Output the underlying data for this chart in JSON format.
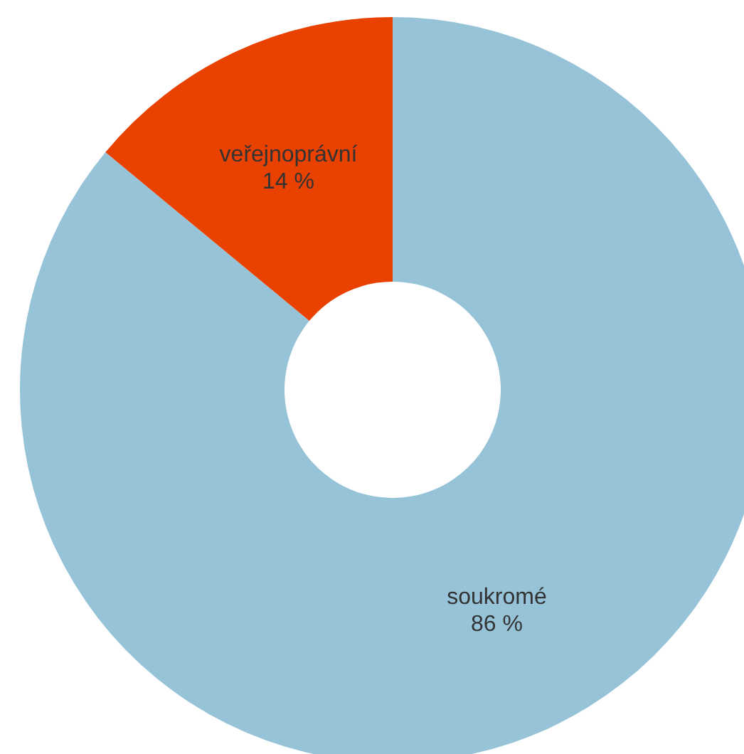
{
  "chart_data": {
    "type": "donut",
    "categories": [
      "soukromé",
      "veřejnoprávní"
    ],
    "values": [
      86,
      14
    ],
    "colors": [
      "#96c3d8",
      "#e84100"
    ],
    "value_labels": [
      "86 %",
      "14 %"
    ],
    "legend": false
  }
}
